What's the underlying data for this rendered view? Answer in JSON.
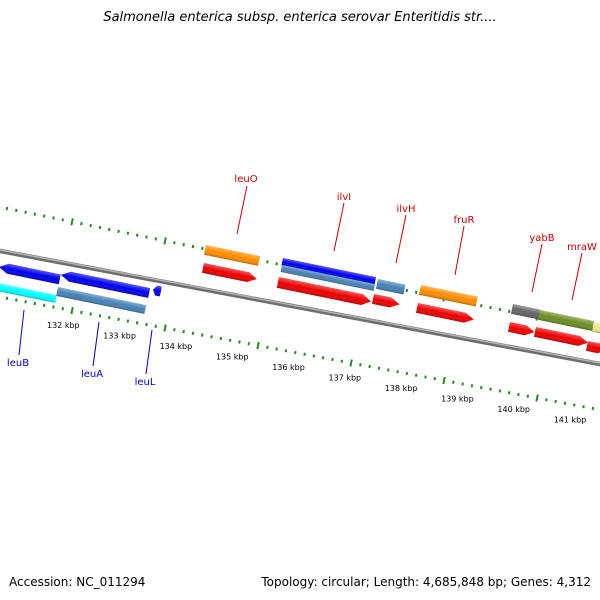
{
  "title": "Salmonella enterica subsp. enterica serovar Enteritidis str....",
  "footer": {
    "accession": "Accession: NC_011294",
    "summary": "Topology: circular; Length: 4,685,848 bp; Genes: 4,312"
  },
  "colors": {
    "backbone": "#8a8a8a",
    "tick_green": "#228b22",
    "label_upper": "#cc0000",
    "label_lower": "#0000cc",
    "gene_blue": "#0000ee",
    "gene_red": "#ee0000",
    "gene_orange": "#ff8c00",
    "gene_steel": "#4682b4",
    "gene_cyan": "#00ffff",
    "gene_gray": "#666666",
    "gene_olive": "#6b8e23",
    "gene_khaki": "#f0e68c"
  },
  "scale": {
    "unit": "kbp",
    "ticks": [
      "132 kbp",
      "133 kbp",
      "134 kbp",
      "135 kbp",
      "136 kbp",
      "137 kbp",
      "138 kbp",
      "139 kbp",
      "140 kbp",
      "141 kbp"
    ]
  },
  "genes_upper": [
    {
      "label": "leuO"
    },
    {
      "label": "ilvI"
    },
    {
      "label": "ilvH"
    },
    {
      "label": "fruR"
    },
    {
      "label": "yabB"
    },
    {
      "label": "mraW"
    }
  ],
  "genes_lower": [
    {
      "label": "leuB"
    },
    {
      "label": "leuA"
    },
    {
      "label": "leuL"
    }
  ]
}
